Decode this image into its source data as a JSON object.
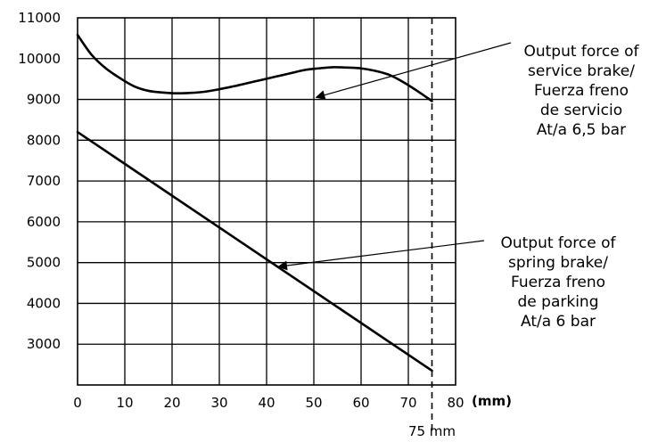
{
  "chart_data": {
    "type": "line",
    "title": "",
    "xlabel": "",
    "ylabel": "",
    "x_unit": "(mm)",
    "xlim": [
      0,
      80
    ],
    "ylim": [
      2000,
      11000
    ],
    "x_ticks": [
      0,
      10,
      20,
      30,
      40,
      50,
      60,
      70,
      80
    ],
    "y_ticks": [
      3000,
      4000,
      5000,
      6000,
      7000,
      8000,
      9000,
      10000,
      11000
    ],
    "grid": true,
    "marker": {
      "x": 75,
      "label": "75 mm"
    },
    "series": [
      {
        "name": "Output force of service brake/ Fuerza freno de servicio At/a 6,5 bar",
        "x": [
          0,
          3,
          6,
          9,
          12,
          15,
          18,
          21,
          24,
          27,
          30,
          33,
          36,
          39,
          42,
          45,
          48,
          51,
          54,
          57,
          60,
          63,
          66,
          69,
          72,
          75
        ],
        "values": [
          10580,
          10090,
          9760,
          9520,
          9320,
          9210,
          9170,
          9150,
          9160,
          9190,
          9250,
          9320,
          9400,
          9480,
          9560,
          9640,
          9720,
          9760,
          9790,
          9780,
          9760,
          9700,
          9600,
          9420,
          9200,
          8960
        ]
      },
      {
        "name": "Output force of spring brake/ Fuerza freno de parking At/a 6 bar",
        "x": [
          0,
          75
        ],
        "values": [
          8200,
          2350
        ]
      }
    ],
    "annotations": [
      {
        "series": 0,
        "lines": [
          "Output force of",
          "service brake/",
          "Fuerza freno",
          "de servicio",
          "At/a 6,5 bar"
        ],
        "point": [
          50.5,
          9050
        ]
      },
      {
        "series": 1,
        "lines": [
          "Output force of",
          "spring brake/",
          "Fuerza freno",
          "de parking",
          "At/a 6 bar"
        ],
        "point": [
          42.5,
          4900
        ]
      }
    ]
  }
}
